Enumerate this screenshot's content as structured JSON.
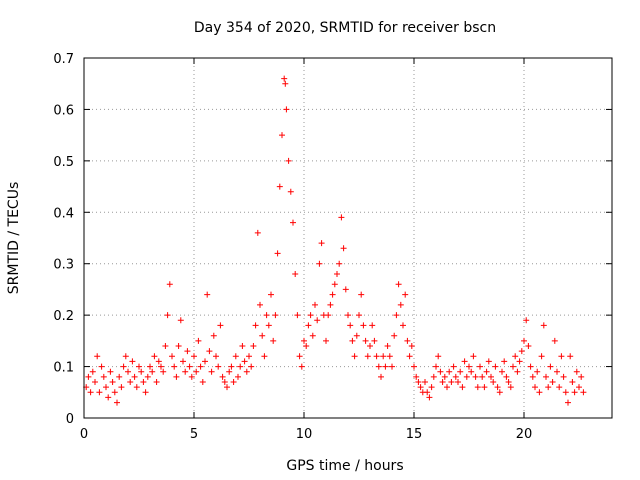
{
  "chart_data": {
    "type": "scatter",
    "title": "Day 354 of 2020, SRMTID for receiver bscn",
    "xlabel": "GPS time / hours",
    "ylabel": "SRMTID / TECUs",
    "xlim": [
      0,
      24
    ],
    "ylim": [
      0,
      0.7
    ],
    "x_ticks": [
      0,
      5,
      10,
      15,
      20
    ],
    "x_tick_labels": [
      "0",
      "5",
      "10",
      "15",
      "20"
    ],
    "y_ticks": [
      0,
      0.1,
      0.2,
      0.3,
      0.4,
      0.5,
      0.6,
      0.7
    ],
    "y_tick_labels": [
      "0",
      "0.1",
      "0.2",
      "0.3",
      "0.4",
      "0.5",
      "0.6",
      "0.7"
    ],
    "grid": true,
    "marker": "+",
    "color": "#ff0000",
    "series": [
      {
        "name": "bscn",
        "points": [
          [
            0.1,
            0.06
          ],
          [
            0.2,
            0.08
          ],
          [
            0.3,
            0.05
          ],
          [
            0.4,
            0.09
          ],
          [
            0.5,
            0.07
          ],
          [
            0.6,
            0.12
          ],
          [
            0.7,
            0.05
          ],
          [
            0.8,
            0.1
          ],
          [
            0.9,
            0.08
          ],
          [
            1.0,
            0.06
          ],
          [
            1.1,
            0.04
          ],
          [
            1.2,
            0.09
          ],
          [
            1.3,
            0.07
          ],
          [
            1.4,
            0.05
          ],
          [
            1.5,
            0.03
          ],
          [
            1.6,
            0.08
          ],
          [
            1.7,
            0.06
          ],
          [
            1.8,
            0.1
          ],
          [
            1.9,
            0.12
          ],
          [
            2.0,
            0.09
          ],
          [
            2.1,
            0.07
          ],
          [
            2.2,
            0.11
          ],
          [
            2.3,
            0.08
          ],
          [
            2.4,
            0.06
          ],
          [
            2.5,
            0.1
          ],
          [
            2.6,
            0.09
          ],
          [
            2.7,
            0.07
          ],
          [
            2.8,
            0.05
          ],
          [
            2.9,
            0.08
          ],
          [
            3.0,
            0.1
          ],
          [
            3.1,
            0.09
          ],
          [
            3.2,
            0.12
          ],
          [
            3.3,
            0.07
          ],
          [
            3.4,
            0.11
          ],
          [
            3.5,
            0.1
          ],
          [
            3.6,
            0.09
          ],
          [
            3.7,
            0.14
          ],
          [
            3.8,
            0.2
          ],
          [
            3.9,
            0.26
          ],
          [
            4.0,
            0.12
          ],
          [
            4.1,
            0.1
          ],
          [
            4.2,
            0.08
          ],
          [
            4.3,
            0.14
          ],
          [
            4.4,
            0.19
          ],
          [
            4.5,
            0.11
          ],
          [
            4.6,
            0.09
          ],
          [
            4.7,
            0.13
          ],
          [
            4.8,
            0.1
          ],
          [
            4.9,
            0.08
          ],
          [
            5.0,
            0.12
          ],
          [
            5.1,
            0.09
          ],
          [
            5.2,
            0.15
          ],
          [
            5.3,
            0.1
          ],
          [
            5.4,
            0.07
          ],
          [
            5.5,
            0.11
          ],
          [
            5.6,
            0.24
          ],
          [
            5.7,
            0.13
          ],
          [
            5.8,
            0.09
          ],
          [
            5.9,
            0.16
          ],
          [
            6.0,
            0.12
          ],
          [
            6.1,
            0.1
          ],
          [
            6.2,
            0.18
          ],
          [
            6.3,
            0.08
          ],
          [
            6.4,
            0.07
          ],
          [
            6.5,
            0.06
          ],
          [
            6.6,
            0.09
          ],
          [
            6.7,
            0.1
          ],
          [
            6.8,
            0.07
          ],
          [
            6.9,
            0.12
          ],
          [
            7.0,
            0.08
          ],
          [
            7.1,
            0.1
          ],
          [
            7.2,
            0.14
          ],
          [
            7.3,
            0.11
          ],
          [
            7.4,
            0.09
          ],
          [
            7.5,
            0.12
          ],
          [
            7.6,
            0.1
          ],
          [
            7.7,
            0.14
          ],
          [
            7.8,
            0.18
          ],
          [
            7.9,
            0.36
          ],
          [
            8.0,
            0.22
          ],
          [
            8.1,
            0.16
          ],
          [
            8.2,
            0.12
          ],
          [
            8.3,
            0.2
          ],
          [
            8.4,
            0.18
          ],
          [
            8.5,
            0.24
          ],
          [
            8.6,
            0.15
          ],
          [
            8.7,
            0.2
          ],
          [
            8.8,
            0.32
          ],
          [
            8.9,
            0.45
          ],
          [
            9.0,
            0.55
          ],
          [
            9.1,
            0.66
          ],
          [
            9.15,
            0.65
          ],
          [
            9.2,
            0.6
          ],
          [
            9.3,
            0.5
          ],
          [
            9.4,
            0.44
          ],
          [
            9.5,
            0.38
          ],
          [
            9.6,
            0.28
          ],
          [
            9.7,
            0.2
          ],
          [
            9.8,
            0.12
          ],
          [
            9.9,
            0.1
          ],
          [
            10.0,
            0.15
          ],
          [
            10.1,
            0.14
          ],
          [
            10.2,
            0.18
          ],
          [
            10.3,
            0.2
          ],
          [
            10.4,
            0.16
          ],
          [
            10.5,
            0.22
          ],
          [
            10.6,
            0.19
          ],
          [
            10.7,
            0.3
          ],
          [
            10.8,
            0.34
          ],
          [
            10.9,
            0.2
          ],
          [
            11.0,
            0.15
          ],
          [
            11.1,
            0.2
          ],
          [
            11.2,
            0.22
          ],
          [
            11.3,
            0.24
          ],
          [
            11.4,
            0.26
          ],
          [
            11.5,
            0.28
          ],
          [
            11.6,
            0.3
          ],
          [
            11.7,
            0.39
          ],
          [
            11.8,
            0.33
          ],
          [
            11.9,
            0.25
          ],
          [
            12.0,
            0.2
          ],
          [
            12.1,
            0.18
          ],
          [
            12.2,
            0.15
          ],
          [
            12.3,
            0.12
          ],
          [
            12.4,
            0.16
          ],
          [
            12.5,
            0.2
          ],
          [
            12.6,
            0.24
          ],
          [
            12.7,
            0.18
          ],
          [
            12.8,
            0.15
          ],
          [
            12.9,
            0.12
          ],
          [
            13.0,
            0.14
          ],
          [
            13.1,
            0.18
          ],
          [
            13.2,
            0.15
          ],
          [
            13.3,
            0.12
          ],
          [
            13.4,
            0.1
          ],
          [
            13.5,
            0.08
          ],
          [
            13.6,
            0.12
          ],
          [
            13.7,
            0.1
          ],
          [
            13.8,
            0.14
          ],
          [
            13.9,
            0.12
          ],
          [
            14.0,
            0.1
          ],
          [
            14.1,
            0.16
          ],
          [
            14.2,
            0.2
          ],
          [
            14.3,
            0.26
          ],
          [
            14.4,
            0.22
          ],
          [
            14.5,
            0.18
          ],
          [
            14.6,
            0.24
          ],
          [
            14.7,
            0.15
          ],
          [
            14.8,
            0.12
          ],
          [
            14.9,
            0.14
          ],
          [
            15.0,
            0.1
          ],
          [
            15.1,
            0.08
          ],
          [
            15.2,
            0.07
          ],
          [
            15.3,
            0.06
          ],
          [
            15.4,
            0.05
          ],
          [
            15.5,
            0.07
          ],
          [
            15.6,
            0.05
          ],
          [
            15.7,
            0.04
          ],
          [
            15.8,
            0.06
          ],
          [
            15.9,
            0.08
          ],
          [
            16.0,
            0.1
          ],
          [
            16.1,
            0.12
          ],
          [
            16.2,
            0.09
          ],
          [
            16.3,
            0.07
          ],
          [
            16.4,
            0.08
          ],
          [
            16.5,
            0.06
          ],
          [
            16.6,
            0.09
          ],
          [
            16.7,
            0.07
          ],
          [
            16.8,
            0.1
          ],
          [
            16.9,
            0.08
          ],
          [
            17.0,
            0.07
          ],
          [
            17.1,
            0.09
          ],
          [
            17.2,
            0.06
          ],
          [
            17.3,
            0.11
          ],
          [
            17.4,
            0.08
          ],
          [
            17.5,
            0.1
          ],
          [
            17.6,
            0.09
          ],
          [
            17.7,
            0.12
          ],
          [
            17.8,
            0.08
          ],
          [
            17.9,
            0.06
          ],
          [
            18.0,
            0.1
          ],
          [
            18.1,
            0.08
          ],
          [
            18.2,
            0.06
          ],
          [
            18.3,
            0.09
          ],
          [
            18.4,
            0.11
          ],
          [
            18.5,
            0.08
          ],
          [
            18.6,
            0.07
          ],
          [
            18.7,
            0.1
          ],
          [
            18.8,
            0.06
          ],
          [
            18.9,
            0.05
          ],
          [
            19.0,
            0.09
          ],
          [
            19.1,
            0.11
          ],
          [
            19.2,
            0.08
          ],
          [
            19.3,
            0.07
          ],
          [
            19.4,
            0.06
          ],
          [
            19.5,
            0.1
          ],
          [
            19.6,
            0.12
          ],
          [
            19.7,
            0.09
          ],
          [
            19.8,
            0.11
          ],
          [
            19.9,
            0.13
          ],
          [
            20.0,
            0.15
          ],
          [
            20.1,
            0.19
          ],
          [
            20.2,
            0.14
          ],
          [
            20.3,
            0.1
          ],
          [
            20.4,
            0.08
          ],
          [
            20.5,
            0.06
          ],
          [
            20.6,
            0.09
          ],
          [
            20.7,
            0.05
          ],
          [
            20.8,
            0.12
          ],
          [
            20.9,
            0.18
          ],
          [
            21.0,
            0.08
          ],
          [
            21.1,
            0.06
          ],
          [
            21.2,
            0.1
          ],
          [
            21.3,
            0.07
          ],
          [
            21.4,
            0.15
          ],
          [
            21.5,
            0.09
          ],
          [
            21.6,
            0.06
          ],
          [
            21.7,
            0.12
          ],
          [
            21.8,
            0.08
          ],
          [
            21.9,
            0.05
          ],
          [
            22.0,
            0.03
          ],
          [
            22.1,
            0.12
          ],
          [
            22.2,
            0.07
          ],
          [
            22.3,
            0.05
          ],
          [
            22.4,
            0.09
          ],
          [
            22.5,
            0.06
          ],
          [
            22.6,
            0.08
          ],
          [
            22.7,
            0.05
          ]
        ]
      }
    ]
  }
}
